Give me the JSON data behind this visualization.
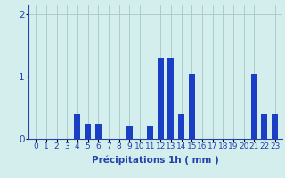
{
  "hours": [
    0,
    1,
    2,
    3,
    4,
    5,
    6,
    7,
    8,
    9,
    10,
    11,
    12,
    13,
    14,
    15,
    16,
    17,
    18,
    19,
    20,
    21,
    22,
    23
  ],
  "values": [
    0,
    0,
    0,
    0,
    0.4,
    0.25,
    0.25,
    0,
    0,
    0.2,
    0,
    0.2,
    1.3,
    1.3,
    0.4,
    1.05,
    0,
    0,
    0,
    0,
    0,
    1.05,
    0.4,
    0.4
  ],
  "bar_color": "#1a3fc4",
  "background_color": "#d4eeee",
  "grid_color": "#aacccc",
  "axis_color": "#2244aa",
  "xlabel": "Précipitations 1h ( mm )",
  "ylim": [
    0,
    2.15
  ],
  "yticks": [
    0,
    1,
    2
  ],
  "xlabel_fontsize": 7.5,
  "tick_fontsize": 6.5,
  "bar_width": 0.6
}
